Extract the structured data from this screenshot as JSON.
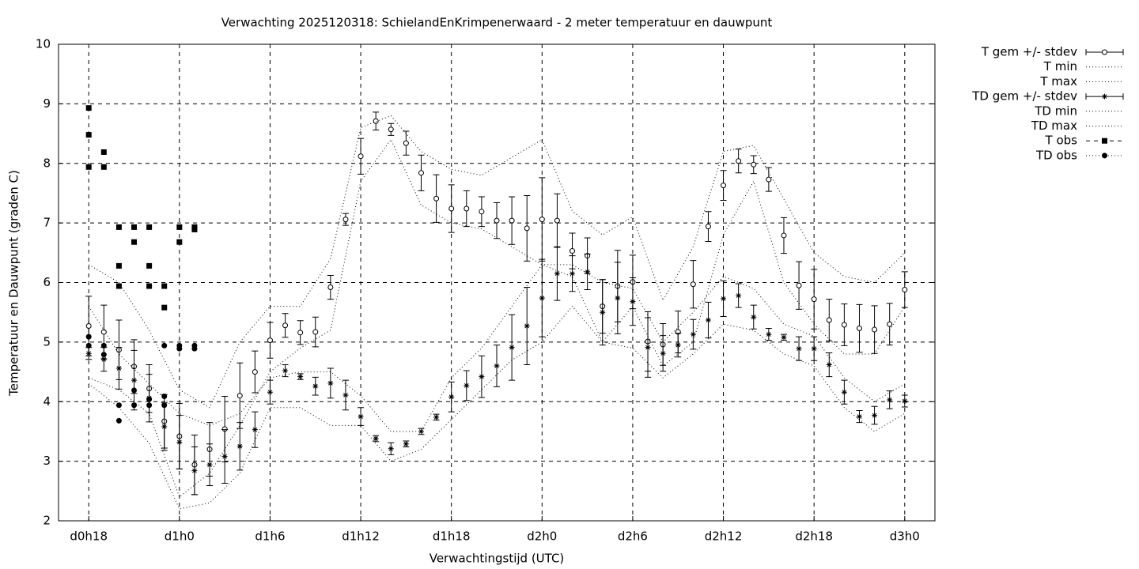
{
  "chart_data": {
    "type": "line",
    "title": "Verwachting 2025120318: SchielandEnKrimpenerwaard - 2 meter temperatuur en dauwpunt",
    "x_label": "Verwachtingstijd (UTC)",
    "y_label": "Temperatuur en Dauwpunt (graden C)",
    "xlim": [
      16,
      74
    ],
    "ylim": [
      2,
      10
    ],
    "xticks": [
      {
        "value": 18,
        "label": "d0h18"
      },
      {
        "value": 24,
        "label": "d1h0"
      },
      {
        "value": 30,
        "label": "d1h6"
      },
      {
        "value": 36,
        "label": "d1h12"
      },
      {
        "value": 42,
        "label": "d1h18"
      },
      {
        "value": 48,
        "label": "d2h0"
      },
      {
        "value": 54,
        "label": "d2h6"
      },
      {
        "value": 60,
        "label": "d2h12"
      },
      {
        "value": 66,
        "label": "d2h18"
      },
      {
        "value": 72,
        "label": "d3h0"
      }
    ],
    "yticks": [
      2,
      3,
      4,
      5,
      6,
      7,
      8,
      9,
      10
    ],
    "grid": true,
    "legend_position": "outside-right",
    "series": [
      {
        "name": "T gem +/- stdev",
        "color": "#000000",
        "style": "errorbar",
        "marker": "circle",
        "x": [
          18,
          19,
          20,
          21,
          22,
          23,
          24,
          25,
          26,
          27,
          28,
          29,
          30,
          31,
          32,
          33,
          34,
          35,
          36,
          37,
          38,
          39,
          40,
          41,
          42,
          43,
          44,
          45,
          46,
          47,
          48,
          49,
          50,
          51,
          52,
          53,
          54,
          55,
          56,
          57,
          58,
          59,
          60,
          61,
          62,
          63,
          64,
          65,
          66,
          67,
          68,
          69,
          70,
          71,
          72
        ],
        "values": [
          5.27,
          5.17,
          4.87,
          4.59,
          4.22,
          3.67,
          3.42,
          2.94,
          3.2,
          3.54,
          4.1,
          4.5,
          5.03,
          5.28,
          5.16,
          5.17,
          5.92,
          7.06,
          8.12,
          8.71,
          8.57,
          8.34,
          7.84,
          7.41,
          7.24,
          7.24,
          7.19,
          7.04,
          7.04,
          6.91,
          7.06,
          7.04,
          6.53,
          6.45,
          5.6,
          5.94,
          6.01,
          5.01,
          4.96,
          5.17,
          5.97,
          6.94,
          7.63,
          8.04,
          7.98,
          7.73,
          6.79,
          5.95,
          5.72,
          5.37,
          5.29,
          5.23,
          5.21,
          5.3,
          5.88
        ],
        "errors": [
          0.5,
          0.45,
          0.5,
          0.45,
          0.4,
          0.45,
          0.55,
          0.5,
          0.45,
          0.55,
          0.55,
          0.35,
          0.3,
          0.2,
          0.2,
          0.25,
          0.2,
          0.1,
          0.3,
          0.15,
          0.1,
          0.2,
          0.3,
          0.4,
          0.4,
          0.3,
          0.25,
          0.3,
          0.4,
          0.55,
          0.7,
          0.45,
          0.3,
          0.3,
          0.45,
          0.6,
          0.45,
          0.5,
          0.35,
          0.35,
          0.4,
          0.25,
          0.25,
          0.2,
          0.15,
          0.2,
          0.3,
          0.4,
          0.5,
          0.35,
          0.35,
          0.4,
          0.4,
          0.35,
          0.3
        ]
      },
      {
        "name": "T min",
        "color": "#000000",
        "style": "dotted",
        "x": [
          18,
          20,
          22,
          24,
          26,
          28,
          30,
          32,
          34,
          36,
          38,
          40,
          42,
          44,
          46,
          48,
          50,
          52,
          54,
          56,
          58,
          60,
          62,
          64,
          66,
          68,
          70,
          72
        ],
        "values": [
          4.4,
          4.2,
          3.8,
          2.4,
          2.8,
          3.6,
          4.5,
          4.9,
          5.2,
          7.7,
          8.4,
          7.3,
          7.0,
          6.9,
          6.6,
          6.3,
          6.1,
          5.0,
          5.6,
          4.6,
          5.0,
          6.8,
          7.7,
          6.0,
          5.3,
          4.8,
          4.8,
          5.6
        ]
      },
      {
        "name": "T max",
        "color": "#000000",
        "style": "dotted",
        "x": [
          18,
          20,
          22,
          24,
          26,
          28,
          30,
          32,
          34,
          36,
          38,
          40,
          42,
          44,
          46,
          48,
          50,
          52,
          54,
          56,
          58,
          60,
          62,
          64,
          66,
          68,
          70,
          72
        ],
        "values": [
          6.3,
          6.0,
          5.2,
          4.2,
          3.9,
          5.0,
          5.6,
          5.6,
          6.4,
          8.6,
          8.8,
          8.2,
          7.9,
          7.8,
          8.1,
          8.4,
          7.2,
          6.8,
          7.1,
          5.7,
          6.6,
          8.2,
          8.3,
          7.4,
          6.5,
          6.1,
          6.0,
          6.5
        ]
      },
      {
        "name": "TD gem +/- stdev",
        "color": "#000000",
        "style": "errorbar",
        "marker": "asterisk",
        "x": [
          18,
          19,
          20,
          21,
          22,
          23,
          24,
          25,
          26,
          27,
          28,
          29,
          30,
          31,
          32,
          33,
          34,
          35,
          36,
          37,
          38,
          39,
          40,
          41,
          42,
          43,
          44,
          45,
          46,
          47,
          48,
          49,
          50,
          51,
          52,
          53,
          54,
          55,
          56,
          57,
          58,
          59,
          60,
          61,
          62,
          63,
          64,
          65,
          66,
          67,
          68,
          69,
          70,
          71,
          72
        ],
        "values": [
          4.81,
          4.71,
          4.56,
          4.36,
          4.06,
          3.58,
          3.32,
          2.84,
          2.94,
          3.08,
          3.25,
          3.53,
          4.16,
          4.52,
          4.42,
          4.26,
          4.31,
          4.11,
          3.75,
          3.38,
          3.21,
          3.29,
          3.5,
          3.74,
          4.08,
          4.27,
          4.42,
          4.6,
          4.91,
          5.27,
          5.74,
          6.15,
          6.15,
          6.18,
          5.5,
          5.74,
          5.68,
          4.91,
          4.81,
          4.95,
          5.13,
          5.37,
          5.73,
          5.78,
          5.42,
          5.13,
          5.08,
          4.89,
          4.89,
          4.62,
          4.16,
          3.75,
          3.77,
          4.03,
          4.01
        ],
        "errors": [
          0.1,
          0.2,
          0.35,
          0.5,
          0.4,
          0.4,
          0.45,
          0.4,
          0.35,
          0.45,
          0.4,
          0.3,
          0.2,
          0.1,
          0.05,
          0.15,
          0.25,
          0.25,
          0.15,
          0.05,
          0.1,
          0.05,
          0.05,
          0.05,
          0.25,
          0.25,
          0.35,
          0.35,
          0.55,
          0.65,
          0.65,
          0.45,
          0.3,
          0.3,
          0.55,
          0.6,
          0.4,
          0.5,
          0.3,
          0.2,
          0.25,
          0.3,
          0.3,
          0.2,
          0.2,
          0.1,
          0.05,
          0.2,
          0.2,
          0.2,
          0.2,
          0.1,
          0.15,
          0.15,
          0.1
        ]
      },
      {
        "name": "TD min",
        "color": "#000000",
        "style": "dotted",
        "x": [
          18,
          20,
          22,
          24,
          26,
          28,
          30,
          32,
          34,
          36,
          38,
          40,
          42,
          44,
          46,
          48,
          50,
          52,
          54,
          56,
          58,
          60,
          62,
          64,
          66,
          68,
          70,
          72
        ],
        "values": [
          4.3,
          3.9,
          3.3,
          2.2,
          2.3,
          2.8,
          3.9,
          3.9,
          3.6,
          3.6,
          3.0,
          3.2,
          3.7,
          4.2,
          4.7,
          5.0,
          5.6,
          5.0,
          4.9,
          4.4,
          4.8,
          5.3,
          5.2,
          4.8,
          4.6,
          3.9,
          3.5,
          3.8
        ]
      },
      {
        "name": "TD max",
        "color": "#000000",
        "style": "dotted",
        "x": [
          18,
          20,
          22,
          24,
          26,
          28,
          30,
          32,
          34,
          36,
          38,
          40,
          42,
          44,
          46,
          48,
          50,
          52,
          54,
          56,
          58,
          60,
          62,
          64,
          66,
          68,
          70,
          72
        ],
        "values": [
          5.6,
          4.8,
          4.3,
          3.8,
          3.6,
          3.8,
          4.4,
          4.5,
          4.5,
          4.1,
          3.5,
          3.5,
          4.4,
          4.9,
          5.6,
          6.3,
          6.3,
          6.0,
          5.9,
          5.0,
          5.5,
          6.1,
          5.9,
          5.3,
          5.1,
          4.4,
          4.0,
          4.3
        ]
      },
      {
        "name": "T obs",
        "color": "#000000",
        "style": "points",
        "marker": "square",
        "x": [
          18,
          18,
          18,
          19,
          19,
          20,
          20,
          20,
          21,
          21,
          22,
          22,
          22,
          23,
          23,
          24,
          24,
          25,
          25
        ],
        "values": [
          8.93,
          8.48,
          7.94,
          8.19,
          7.94,
          6.93,
          6.28,
          5.94,
          6.93,
          6.68,
          6.93,
          6.28,
          5.94,
          5.94,
          5.58,
          6.93,
          6.68,
          6.93,
          6.89
        ]
      },
      {
        "name": "TD obs",
        "color": "#000000",
        "style": "points",
        "marker": "dot",
        "x": [
          18,
          18,
          19,
          19,
          20,
          20,
          21,
          21,
          22,
          22,
          23,
          23,
          23,
          24,
          24,
          25,
          25
        ],
        "values": [
          5.09,
          4.94,
          4.94,
          4.79,
          3.94,
          3.68,
          4.19,
          3.94,
          4.04,
          3.94,
          4.09,
          3.94,
          4.94,
          4.94,
          4.89,
          4.94,
          4.89
        ]
      }
    ]
  }
}
